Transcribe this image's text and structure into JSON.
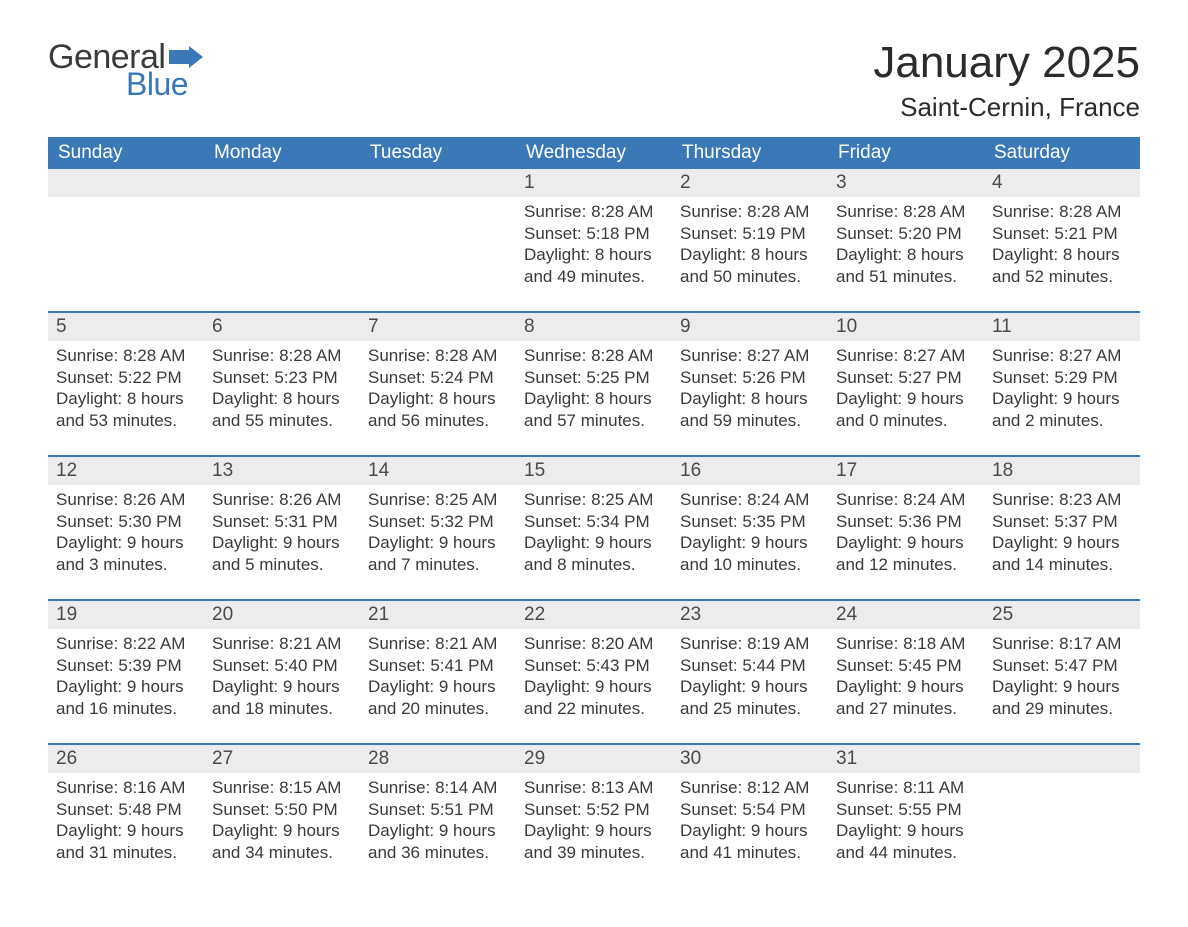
{
  "brand": {
    "general": "General",
    "blue": "Blue"
  },
  "colors": {
    "accent": "#3b78b8",
    "header_text": "#ffffff",
    "daynum_bg": "#ececec",
    "body_text": "#3a3a3a",
    "page_bg": "#ffffff"
  },
  "title": "January 2025",
  "location": "Saint-Cernin, France",
  "weekdays": [
    "Sunday",
    "Monday",
    "Tuesday",
    "Wednesday",
    "Thursday",
    "Friday",
    "Saturday"
  ],
  "labels": {
    "sunrise": "Sunrise:",
    "sunset": "Sunset:",
    "daylight": "Daylight:"
  },
  "weeks": [
    [
      null,
      null,
      null,
      {
        "n": "1",
        "sunrise": "8:28 AM",
        "sunset": "5:18 PM",
        "daylight": "8 hours and 49 minutes."
      },
      {
        "n": "2",
        "sunrise": "8:28 AM",
        "sunset": "5:19 PM",
        "daylight": "8 hours and 50 minutes."
      },
      {
        "n": "3",
        "sunrise": "8:28 AM",
        "sunset": "5:20 PM",
        "daylight": "8 hours and 51 minutes."
      },
      {
        "n": "4",
        "sunrise": "8:28 AM",
        "sunset": "5:21 PM",
        "daylight": "8 hours and 52 minutes."
      }
    ],
    [
      {
        "n": "5",
        "sunrise": "8:28 AM",
        "sunset": "5:22 PM",
        "daylight": "8 hours and 53 minutes."
      },
      {
        "n": "6",
        "sunrise": "8:28 AM",
        "sunset": "5:23 PM",
        "daylight": "8 hours and 55 minutes."
      },
      {
        "n": "7",
        "sunrise": "8:28 AM",
        "sunset": "5:24 PM",
        "daylight": "8 hours and 56 minutes."
      },
      {
        "n": "8",
        "sunrise": "8:28 AM",
        "sunset": "5:25 PM",
        "daylight": "8 hours and 57 minutes."
      },
      {
        "n": "9",
        "sunrise": "8:27 AM",
        "sunset": "5:26 PM",
        "daylight": "8 hours and 59 minutes."
      },
      {
        "n": "10",
        "sunrise": "8:27 AM",
        "sunset": "5:27 PM",
        "daylight": "9 hours and 0 minutes."
      },
      {
        "n": "11",
        "sunrise": "8:27 AM",
        "sunset": "5:29 PM",
        "daylight": "9 hours and 2 minutes."
      }
    ],
    [
      {
        "n": "12",
        "sunrise": "8:26 AM",
        "sunset": "5:30 PM",
        "daylight": "9 hours and 3 minutes."
      },
      {
        "n": "13",
        "sunrise": "8:26 AM",
        "sunset": "5:31 PM",
        "daylight": "9 hours and 5 minutes."
      },
      {
        "n": "14",
        "sunrise": "8:25 AM",
        "sunset": "5:32 PM",
        "daylight": "9 hours and 7 minutes."
      },
      {
        "n": "15",
        "sunrise": "8:25 AM",
        "sunset": "5:34 PM",
        "daylight": "9 hours and 8 minutes."
      },
      {
        "n": "16",
        "sunrise": "8:24 AM",
        "sunset": "5:35 PM",
        "daylight": "9 hours and 10 minutes."
      },
      {
        "n": "17",
        "sunrise": "8:24 AM",
        "sunset": "5:36 PM",
        "daylight": "9 hours and 12 minutes."
      },
      {
        "n": "18",
        "sunrise": "8:23 AM",
        "sunset": "5:37 PM",
        "daylight": "9 hours and 14 minutes."
      }
    ],
    [
      {
        "n": "19",
        "sunrise": "8:22 AM",
        "sunset": "5:39 PM",
        "daylight": "9 hours and 16 minutes."
      },
      {
        "n": "20",
        "sunrise": "8:21 AM",
        "sunset": "5:40 PM",
        "daylight": "9 hours and 18 minutes."
      },
      {
        "n": "21",
        "sunrise": "8:21 AM",
        "sunset": "5:41 PM",
        "daylight": "9 hours and 20 minutes."
      },
      {
        "n": "22",
        "sunrise": "8:20 AM",
        "sunset": "5:43 PM",
        "daylight": "9 hours and 22 minutes."
      },
      {
        "n": "23",
        "sunrise": "8:19 AM",
        "sunset": "5:44 PM",
        "daylight": "9 hours and 25 minutes."
      },
      {
        "n": "24",
        "sunrise": "8:18 AM",
        "sunset": "5:45 PM",
        "daylight": "9 hours and 27 minutes."
      },
      {
        "n": "25",
        "sunrise": "8:17 AM",
        "sunset": "5:47 PM",
        "daylight": "9 hours and 29 minutes."
      }
    ],
    [
      {
        "n": "26",
        "sunrise": "8:16 AM",
        "sunset": "5:48 PM",
        "daylight": "9 hours and 31 minutes."
      },
      {
        "n": "27",
        "sunrise": "8:15 AM",
        "sunset": "5:50 PM",
        "daylight": "9 hours and 34 minutes."
      },
      {
        "n": "28",
        "sunrise": "8:14 AM",
        "sunset": "5:51 PM",
        "daylight": "9 hours and 36 minutes."
      },
      {
        "n": "29",
        "sunrise": "8:13 AM",
        "sunset": "5:52 PM",
        "daylight": "9 hours and 39 minutes."
      },
      {
        "n": "30",
        "sunrise": "8:12 AM",
        "sunset": "5:54 PM",
        "daylight": "9 hours and 41 minutes."
      },
      {
        "n": "31",
        "sunrise": "8:11 AM",
        "sunset": "5:55 PM",
        "daylight": "9 hours and 44 minutes."
      },
      null
    ]
  ]
}
